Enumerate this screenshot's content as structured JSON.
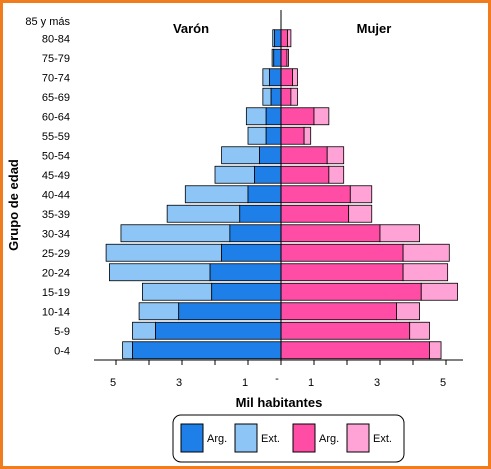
{
  "chart_data": {
    "type": "bar",
    "subtype": "population-pyramid",
    "ylabel": "Grupo de edad",
    "xlabel": "Mil habitantes",
    "left_title": "Varón",
    "right_title": "Mujer",
    "categories": [
      "0-4",
      "5-9",
      "10-14",
      "15-19",
      "20-24",
      "25-29",
      "30-34",
      "35-39",
      "40-44",
      "45-49",
      "50-54",
      "55-59",
      "60-64",
      "65-69",
      "70-74",
      "75-79",
      "80-84",
      "85 y más"
    ],
    "xticks_left": [
      "5",
      "3",
      "1"
    ],
    "xticks_right": [
      "1",
      "3",
      "5"
    ],
    "xtick_center": "-",
    "xlim": [
      -5.5,
      5.5
    ],
    "series": [
      {
        "name": "Arg.",
        "side": "Varón",
        "color": "#1E7FE8",
        "values": [
          4.5,
          3.8,
          3.1,
          2.1,
          2.15,
          1.8,
          1.55,
          1.25,
          1.0,
          0.8,
          0.65,
          0.45,
          0.45,
          0.3,
          0.35,
          0.22,
          0.2,
          0.0
        ]
      },
      {
        "name": "Ext.",
        "side": "Varón",
        "color": "#8EC5F7",
        "values": [
          0.3,
          0.7,
          1.2,
          2.1,
          3.05,
          3.5,
          3.3,
          2.2,
          1.9,
          1.2,
          1.15,
          0.55,
          0.6,
          0.25,
          0.2,
          0.05,
          0.05,
          0.0
        ]
      },
      {
        "name": "Arg.",
        "side": "Mujer",
        "color": "#FF4DA6",
        "values": [
          4.5,
          3.9,
          3.5,
          4.25,
          3.7,
          3.7,
          3.0,
          2.05,
          2.1,
          1.45,
          1.4,
          0.7,
          1.0,
          0.3,
          0.35,
          0.18,
          0.2,
          0.0
        ]
      },
      {
        "name": "Ext.",
        "side": "Mujer",
        "color": "#FFA3D6",
        "values": [
          0.35,
          0.6,
          0.7,
          1.1,
          1.35,
          1.4,
          1.2,
          0.7,
          0.65,
          0.45,
          0.5,
          0.2,
          0.45,
          0.2,
          0.15,
          0.05,
          0.1,
          0.0
        ]
      }
    ],
    "legend": {
      "placement": "bottom",
      "items": [
        {
          "label": "Arg.",
          "color": "#1E7FE8"
        },
        {
          "label": "Ext.",
          "color": "#8EC5F7"
        },
        {
          "label": "Arg.",
          "color": "#FF4DA6"
        },
        {
          "label": "Ext.",
          "color": "#FFA3D6"
        }
      ]
    },
    "grid": false
  }
}
